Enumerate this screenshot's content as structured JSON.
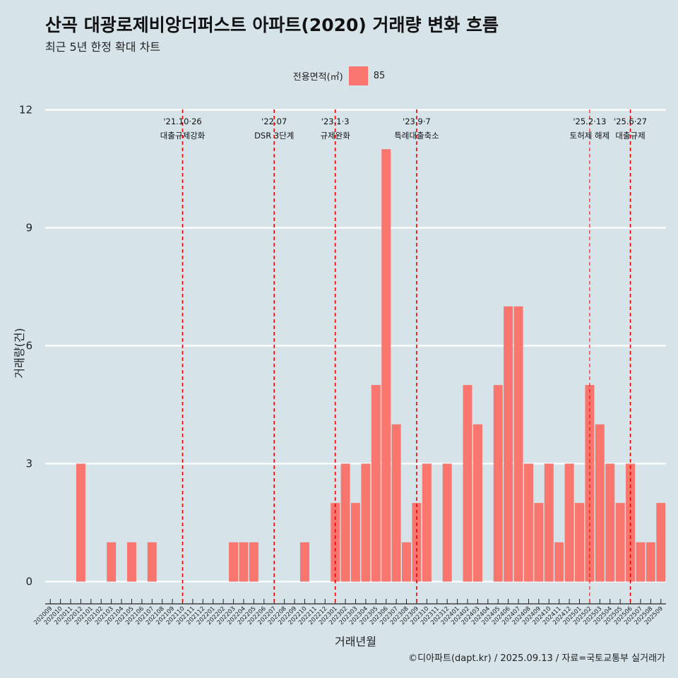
{
  "header": {
    "title": "산곡 대광로제비앙더퍼스트 아파트(2020) 거래량 변화 흐름",
    "subtitle": "최근 5년 한정 확대 차트"
  },
  "legend": {
    "title": "전용면적(㎡)",
    "item": "85",
    "color": "#f8766d"
  },
  "caption": "©디아파트(dapt.kr) / 2025.09.13 / 자료=국토교통부 실거래가",
  "colors": {
    "background": "#d6e4ea",
    "bar": "#f8766d",
    "grid": "#ffffff",
    "event_line": "#ee0000"
  },
  "chart_data": {
    "type": "bar",
    "xlabel": "거래년월",
    "ylabel": "거래량(건)",
    "ylim": [
      0,
      12
    ],
    "yticks": [
      0,
      3,
      6,
      9,
      12
    ],
    "grid": true,
    "legend_position": "top",
    "categories": [
      "202009",
      "202010",
      "202011",
      "202012",
      "202101",
      "202102",
      "202103",
      "202104",
      "202105",
      "202106",
      "202107",
      "202108",
      "202109",
      "202110",
      "202111",
      "202112",
      "202201",
      "202202",
      "202203",
      "202204",
      "202205",
      "202206",
      "202207",
      "202208",
      "202209",
      "202210",
      "202211",
      "202212",
      "202301",
      "202302",
      "202303",
      "202304",
      "202305",
      "202306",
      "202307",
      "202308",
      "202309",
      "202310",
      "202311",
      "202312",
      "202401",
      "202402",
      "202403",
      "202404",
      "202405",
      "202406",
      "202407",
      "202408",
      "202409",
      "202410",
      "202411",
      "202412",
      "202501",
      "202502",
      "202503",
      "202504",
      "202505",
      "202506",
      "202507",
      "202508",
      "202509"
    ],
    "series": [
      {
        "name": "85",
        "values": [
          0,
          0,
          0,
          3,
          0,
          0,
          1,
          0,
          1,
          0,
          1,
          0,
          0,
          0,
          0,
          0,
          0,
          0,
          1,
          1,
          1,
          0,
          0,
          0,
          0,
          1,
          0,
          0,
          2,
          3,
          2,
          3,
          5,
          11,
          4,
          1,
          2,
          3,
          0,
          3,
          0,
          5,
          4,
          0,
          5,
          7,
          7,
          3,
          2,
          3,
          1,
          3,
          2,
          5,
          4,
          3,
          2,
          3,
          1,
          1,
          2
        ]
      }
    ],
    "annotations": [
      {
        "category": "202110",
        "date": "'21.10·26",
        "label": "대출규제강화"
      },
      {
        "category": "202207",
        "date": "'22.07",
        "label": "DSR 3단계"
      },
      {
        "category": "202301",
        "date": "'23.1·3",
        "label": "규제완화"
      },
      {
        "category": "202309",
        "date": "'23.9·7",
        "label": "특례대출축소"
      },
      {
        "category": "202502",
        "date": "'25.2·13",
        "label": "토허제 해제"
      },
      {
        "category": "202506",
        "date": "'25.6·27",
        "label": "대출규제"
      }
    ]
  }
}
